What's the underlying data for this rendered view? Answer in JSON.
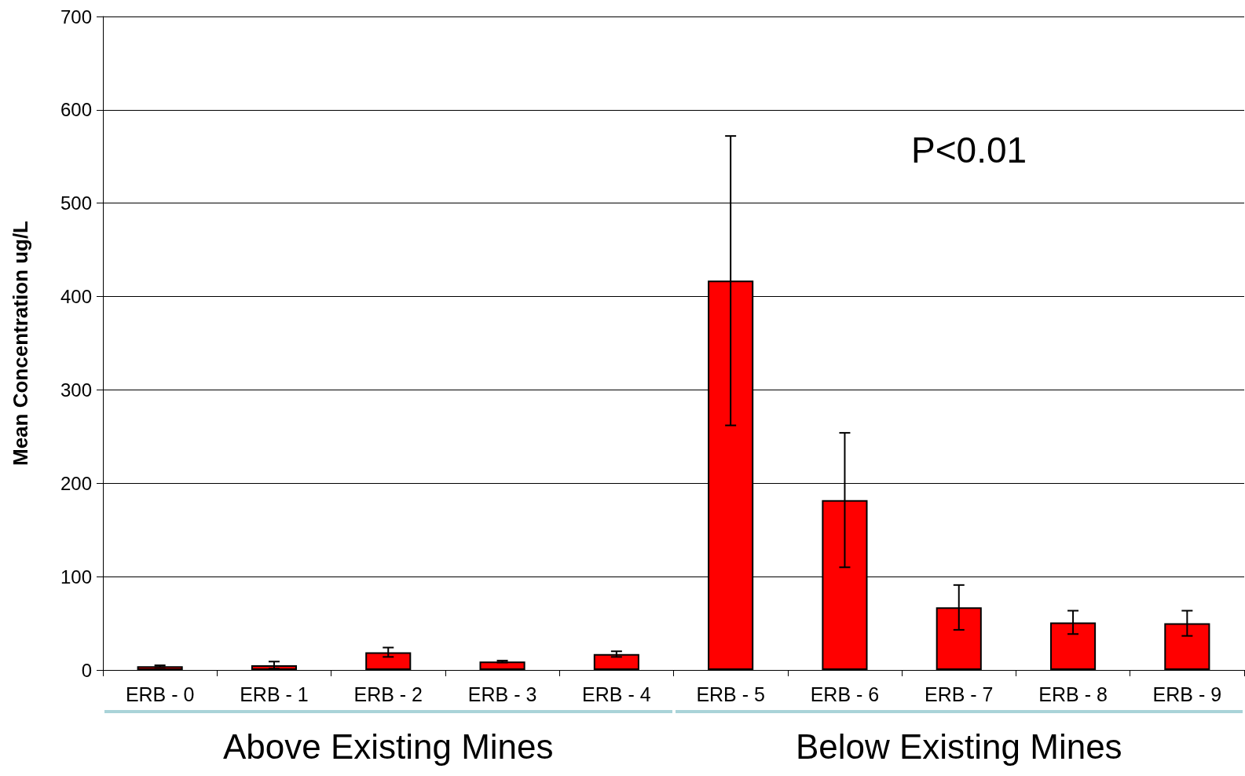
{
  "chart_data": {
    "type": "bar",
    "ylabel": "Mean Concentration ug/L",
    "categories": [
      "ERB - 0",
      "ERB - 1",
      "ERB - 2",
      "ERB - 3",
      "ERB - 4",
      "ERB - 5",
      "ERB - 6",
      "ERB - 7",
      "ERB - 8",
      "ERB - 9"
    ],
    "values": [
      4,
      5,
      19,
      9,
      17,
      417,
      182,
      67,
      51,
      50
    ],
    "errors": [
      1,
      [
        1.5,
        9
      ],
      5,
      1,
      3,
      155,
      72,
      24,
      12.5,
      13.5
    ],
    "color": "#ff0000",
    "ylim": [
      0,
      700
    ],
    "yticks": [
      0,
      100,
      200,
      300,
      400,
      500,
      600,
      700
    ],
    "grid": "y",
    "annotations": [
      "P<0.01",
      "Above Existing Mines",
      "Below Existing Mines"
    ]
  }
}
